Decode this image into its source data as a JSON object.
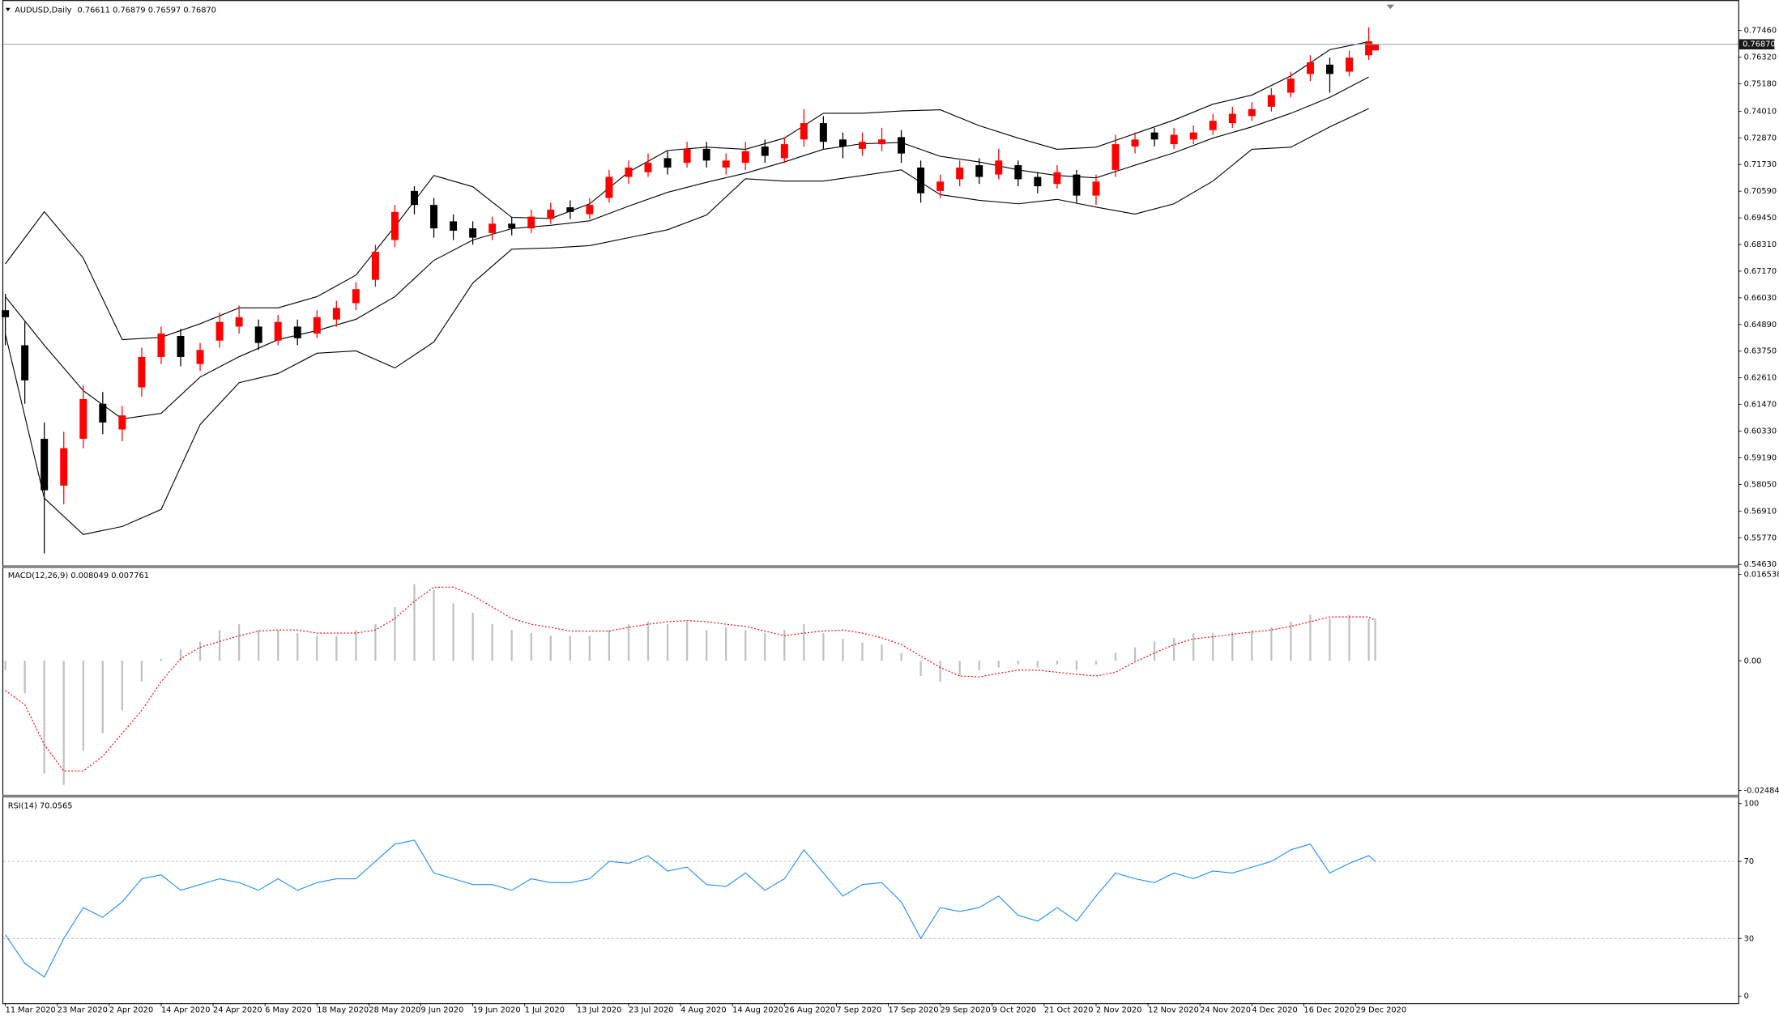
{
  "chart_data": [
    {
      "type": "candlestick",
      "title": "AUDUSD,Daily",
      "title_values": "0.76611 0.76879 0.76597 0.76870",
      "up_color": "#ff0000",
      "down_color": "#000000",
      "x": [
        0,
        3,
        6,
        9,
        12,
        15,
        18,
        21,
        24,
        27,
        30,
        33,
        36,
        39,
        42,
        45,
        48,
        51,
        54,
        57,
        60,
        63,
        66,
        69,
        72,
        75,
        78,
        81,
        84,
        87,
        90,
        93,
        96,
        99,
        102,
        105,
        108,
        111,
        114,
        117,
        120,
        123,
        126,
        129,
        132,
        135,
        138,
        141,
        144,
        147,
        150,
        153,
        156,
        159,
        162,
        165,
        168,
        171,
        174,
        177,
        180,
        183,
        186,
        189,
        192,
        195,
        198,
        201,
        204,
        207,
        210,
        211
      ],
      "open": [
        0.655,
        0.64,
        0.6,
        0.58,
        0.6,
        0.615,
        0.604,
        0.622,
        0.635,
        0.644,
        0.632,
        0.642,
        0.648,
        0.648,
        0.642,
        0.648,
        0.645,
        0.651,
        0.658,
        0.668,
        0.685,
        0.706,
        0.7,
        0.693,
        0.69,
        0.688,
        0.692,
        0.69,
        0.694,
        0.699,
        0.696,
        0.703,
        0.712,
        0.714,
        0.72,
        0.718,
        0.724,
        0.716,
        0.718,
        0.725,
        0.72,
        0.728,
        0.735,
        0.728,
        0.724,
        0.726,
        0.729,
        0.716,
        0.706,
        0.711,
        0.717,
        0.713,
        0.717,
        0.712,
        0.709,
        0.713,
        0.704,
        0.715,
        0.725,
        0.731,
        0.726,
        0.728,
        0.732,
        0.735,
        0.738,
        0.742,
        0.748,
        0.756,
        0.76,
        0.757,
        0.764,
        0.76611
      ],
      "high": [
        0.662,
        0.65,
        0.607,
        0.603,
        0.623,
        0.62,
        0.614,
        0.639,
        0.648,
        0.647,
        0.641,
        0.654,
        0.657,
        0.651,
        0.653,
        0.651,
        0.655,
        0.659,
        0.667,
        0.683,
        0.7,
        0.708,
        0.703,
        0.696,
        0.693,
        0.695,
        0.695,
        0.698,
        0.701,
        0.702,
        0.703,
        0.715,
        0.719,
        0.722,
        0.723,
        0.727,
        0.727,
        0.722,
        0.727,
        0.728,
        0.729,
        0.741,
        0.738,
        0.731,
        0.731,
        0.733,
        0.732,
        0.719,
        0.713,
        0.719,
        0.72,
        0.724,
        0.719,
        0.714,
        0.717,
        0.715,
        0.713,
        0.73,
        0.731,
        0.733,
        0.733,
        0.734,
        0.739,
        0.742,
        0.744,
        0.75,
        0.757,
        0.764,
        0.763,
        0.766,
        0.776,
        0.76879
      ],
      "low": [
        0.64,
        0.615,
        0.551,
        0.572,
        0.596,
        0.602,
        0.599,
        0.618,
        0.632,
        0.631,
        0.629,
        0.639,
        0.645,
        0.638,
        0.64,
        0.64,
        0.643,
        0.648,
        0.655,
        0.665,
        0.682,
        0.696,
        0.686,
        0.685,
        0.683,
        0.685,
        0.687,
        0.688,
        0.692,
        0.694,
        0.694,
        0.701,
        0.709,
        0.712,
        0.713,
        0.716,
        0.716,
        0.713,
        0.715,
        0.718,
        0.718,
        0.725,
        0.724,
        0.72,
        0.721,
        0.723,
        0.718,
        0.701,
        0.703,
        0.708,
        0.709,
        0.711,
        0.708,
        0.705,
        0.707,
        0.701,
        0.7,
        0.712,
        0.722,
        0.725,
        0.724,
        0.726,
        0.73,
        0.733,
        0.736,
        0.74,
        0.746,
        0.753,
        0.748,
        0.755,
        0.762,
        0.76597
      ],
      "close": [
        0.652,
        0.625,
        0.578,
        0.596,
        0.617,
        0.607,
        0.61,
        0.635,
        0.645,
        0.635,
        0.638,
        0.65,
        0.652,
        0.641,
        0.65,
        0.643,
        0.652,
        0.656,
        0.664,
        0.68,
        0.697,
        0.7,
        0.69,
        0.689,
        0.686,
        0.692,
        0.69,
        0.695,
        0.698,
        0.697,
        0.7,
        0.712,
        0.716,
        0.718,
        0.716,
        0.724,
        0.719,
        0.719,
        0.723,
        0.721,
        0.726,
        0.735,
        0.727,
        0.725,
        0.727,
        0.728,
        0.722,
        0.705,
        0.71,
        0.716,
        0.712,
        0.719,
        0.711,
        0.708,
        0.714,
        0.704,
        0.71,
        0.726,
        0.728,
        0.728,
        0.73,
        0.731,
        0.736,
        0.739,
        0.741,
        0.747,
        0.754,
        0.761,
        0.756,
        0.763,
        0.77,
        0.7687
      ],
      "bands": {
        "x": [
          0,
          6,
          12,
          18,
          24,
          30,
          36,
          42,
          48,
          54,
          60,
          66,
          72,
          78,
          84,
          90,
          96,
          102,
          108,
          114,
          120,
          126,
          132,
          138,
          144,
          150,
          156,
          162,
          168,
          174,
          180,
          186,
          192,
          198,
          204,
          210
        ],
        "series": [
          {
            "color": "#000000",
            "values": [
              0.6748,
              0.6971,
              0.6773,
              0.6424,
              0.6434,
              0.6492,
              0.656,
              0.656,
              0.6608,
              0.67,
              0.6908,
              0.7126,
              0.7078,
              0.6947,
              0.6942,
              0.7005,
              0.7141,
              0.7233,
              0.7247,
              0.7238,
              0.7286,
              0.7392,
              0.7392,
              0.7402,
              0.7407,
              0.7339,
              0.7286,
              0.7238,
              0.7247,
              0.7305,
              0.7363,
              0.7431,
              0.747,
              0.7552,
              0.7664,
              0.7698
            ]
          },
          {
            "color": "#000000",
            "values": [
              0.6608,
              0.64,
              0.6206,
              0.6085,
              0.6109,
              0.6264,
              0.6351,
              0.6424,
              0.6463,
              0.6511,
              0.6608,
              0.6763,
              0.685,
              0.6899,
              0.6913,
              0.6932,
              0.6995,
              0.7054,
              0.7097,
              0.7136,
              0.7184,
              0.7238,
              0.7262,
              0.7267,
              0.7208,
              0.7184,
              0.715,
              0.7126,
              0.7116,
              0.717,
              0.7223,
              0.7286,
              0.7334,
              0.7392,
              0.746,
              0.7547
            ]
          },
          {
            "color": "#000000",
            "values": [
              0.6448,
              0.5746,
              0.5591,
              0.5625,
              0.5698,
              0.6061,
              0.624,
              0.6279,
              0.6366,
              0.6376,
              0.6303,
              0.6414,
              0.6666,
              0.6811,
              0.6816,
              0.6826,
              0.686,
              0.6894,
              0.6957,
              0.7112,
              0.7102,
              0.7102,
              0.7126,
              0.715,
              0.7044,
              0.702,
              0.7005,
              0.7024,
              0.6991,
              0.6961,
              0.7005,
              0.7102,
              0.7238,
              0.7247,
              0.7334,
              0.7412
            ]
          }
        ]
      },
      "current_price": {
        "value": 0.7687,
        "label": "0.76870"
      },
      "ylim": [
        0.5463,
        0.7828
      ],
      "yticks": [
        {
          "value": 0.7746,
          "label": "0.77460"
        },
        {
          "value": 0.7632,
          "label": "0.76320"
        },
        {
          "value": 0.7518,
          "label": "0.75180"
        },
        {
          "value": 0.7401,
          "label": "0.74010"
        },
        {
          "value": 0.7287,
          "label": "0.72870"
        },
        {
          "value": 0.7173,
          "label": "0.71730"
        },
        {
          "value": 0.7059,
          "label": "0.70590"
        },
        {
          "value": 0.6945,
          "label": "0.69450"
        },
        {
          "value": 0.6831,
          "label": "0.68310"
        },
        {
          "value": 0.6717,
          "label": "0.67170"
        },
        {
          "value": 0.6603,
          "label": "0.66030"
        },
        {
          "value": 0.6489,
          "label": "0.64890"
        },
        {
          "value": 0.6375,
          "label": "0.63750"
        },
        {
          "value": 0.6261,
          "label": "0.62610"
        },
        {
          "value": 0.6147,
          "label": "0.61470"
        },
        {
          "value": 0.6033,
          "label": "0.60330"
        },
        {
          "value": 0.5919,
          "label": "0.59190"
        },
        {
          "value": 0.5805,
          "label": "0.58050"
        },
        {
          "value": 0.5691,
          "label": "0.56910"
        },
        {
          "value": 0.5577,
          "label": "0.55770"
        },
        {
          "value": 0.5463,
          "label": "0.54630"
        }
      ],
      "xlim": [
        -0.3,
        266.9
      ],
      "xticks": [
        {
          "value": 0,
          "label": "11 Mar 2020"
        },
        {
          "value": 8,
          "label": "23 Mar 2020"
        },
        {
          "value": 16,
          "label": "2 Apr 2020"
        },
        {
          "value": 24,
          "label": "14 Apr 2020"
        },
        {
          "value": 32,
          "label": "24 Apr 2020"
        },
        {
          "value": 40,
          "label": "6 May 2020"
        },
        {
          "value": 48,
          "label": "18 May 2020"
        },
        {
          "value": 56,
          "label": "28 May 2020"
        },
        {
          "value": 64,
          "label": "9 Jun 2020"
        },
        {
          "value": 72,
          "label": "19 Jun 2020"
        },
        {
          "value": 80,
          "label": "1 Jul 2020"
        },
        {
          "value": 88,
          "label": "13 Jul 2020"
        },
        {
          "value": 96,
          "label": "23 Jul 2020"
        },
        {
          "value": 104,
          "label": "4 Aug 2020"
        },
        {
          "value": 112,
          "label": "14 Aug 2020"
        },
        {
          "value": 120,
          "label": "26 Aug 2020"
        },
        {
          "value": 128,
          "label": "7 Sep 2020"
        },
        {
          "value": 136,
          "label": "17 Sep 2020"
        },
        {
          "value": 144,
          "label": "29 Sep 2020"
        },
        {
          "value": 152,
          "label": "9 Oct 2020"
        },
        {
          "value": 160,
          "label": "21 Oct 2020"
        },
        {
          "value": 168,
          "label": "2 Nov 2020"
        },
        {
          "value": 176,
          "label": "12 Nov 2020"
        },
        {
          "value": 184,
          "label": "24 Nov 2020"
        },
        {
          "value": 192,
          "label": "4 Dec 2020"
        },
        {
          "value": 200,
          "label": "16 Dec 2020"
        },
        {
          "value": 208,
          "label": "29 Dec 2020"
        }
      ]
    },
    {
      "type": "bar",
      "title": "MACD(12,26,9) 0.008049 0.007761",
      "series": [
        {
          "style": "bar",
          "color": "#c0c0c0",
          "values": [
            -0.0018,
            -0.0062,
            -0.0216,
            -0.0238,
            -0.0172,
            -0.0139,
            -0.0095,
            -0.004,
            0.0004,
            0.0022,
            0.0037,
            0.0059,
            0.007,
            0.0059,
            0.0059,
            0.0053,
            0.0048,
            0.0048,
            0.0059,
            0.007,
            0.0103,
            0.0147,
            0.0136,
            0.011,
            0.0092,
            0.007,
            0.0059,
            0.0053,
            0.0048,
            0.0048,
            0.0048,
            0.0059,
            0.007,
            0.0075,
            0.007,
            0.0075,
            0.0059,
            0.0064,
            0.0059,
            0.0053,
            0.0059,
            0.007,
            0.0053,
            0.0042,
            0.0035,
            0.0031,
            0.0015,
            -0.0029,
            -0.004,
            -0.0029,
            -0.0018,
            -0.0013,
            -0.0007,
            -0.0013,
            -0.0007,
            -0.0018,
            -0.0007,
            0.0015,
            0.0026,
            0.0037,
            0.0044,
            0.0053,
            0.0053,
            0.0055,
            0.0059,
            0.0064,
            0.0075,
            0.0088,
            0.0081,
            0.0088,
            0.0081,
            0.008049
          ]
        },
        {
          "style": "line",
          "color": "#ff0000",
          "dashed": true,
          "values": [
            -0.0057,
            -0.0084,
            -0.0161,
            -0.0211,
            -0.0211,
            -0.0183,
            -0.0139,
            -0.0095,
            -0.004,
            0.0004,
            0.0026,
            0.0037,
            0.0048,
            0.0057,
            0.0059,
            0.0059,
            0.0053,
            0.0053,
            0.0053,
            0.0059,
            0.0081,
            0.0114,
            0.0141,
            0.0141,
            0.0125,
            0.0103,
            0.0081,
            0.007,
            0.0064,
            0.0057,
            0.0057,
            0.0057,
            0.0064,
            0.007,
            0.0075,
            0.0077,
            0.0075,
            0.007,
            0.0066,
            0.0057,
            0.0048,
            0.0053,
            0.0057,
            0.0059,
            0.0053,
            0.0044,
            0.0031,
            0.0009,
            -0.0013,
            -0.0029,
            -0.0031,
            -0.0024,
            -0.0018,
            -0.0018,
            -0.0022,
            -0.0026,
            -0.0029,
            -0.0022,
            -0.0002,
            0.0015,
            0.0031,
            0.0042,
            0.0046,
            0.0051,
            0.0055,
            0.0059,
            0.0066,
            0.0075,
            0.0084,
            0.0084,
            0.0084,
            0.007761
          ]
        }
      ],
      "ylim": [
        -0.0254,
        0.0176
      ],
      "yticks": [
        0.016538,
        {
          "value": 0,
          "label": "0.00"
        },
        -0.024849
      ]
    },
    {
      "type": "line",
      "title": "RSI(14) 70.0565",
      "series": [
        {
          "color": "#1e90ff",
          "values": [
            32,
            17,
            10,
            30,
            46,
            41,
            49,
            61,
            63,
            55,
            58,
            61,
            59,
            55,
            61,
            55,
            59,
            61,
            61,
            70,
            79,
            81,
            64,
            61,
            58,
            58,
            55,
            61,
            59,
            59,
            61,
            70,
            69,
            73,
            65,
            67,
            58,
            57,
            64,
            55,
            61,
            76,
            64,
            52,
            58,
            59,
            49,
            30,
            46,
            44,
            46,
            52,
            42,
            39,
            46,
            39,
            52,
            64,
            61,
            59,
            64,
            61,
            65,
            64,
            67,
            70,
            76,
            79,
            64,
            69,
            73,
            70.0565
          ]
        }
      ],
      "levels": [
        30,
        70
      ],
      "ylim": [
        -3.5,
        102.4
      ],
      "yticks": [
        100,
        70,
        30,
        0
      ]
    }
  ]
}
